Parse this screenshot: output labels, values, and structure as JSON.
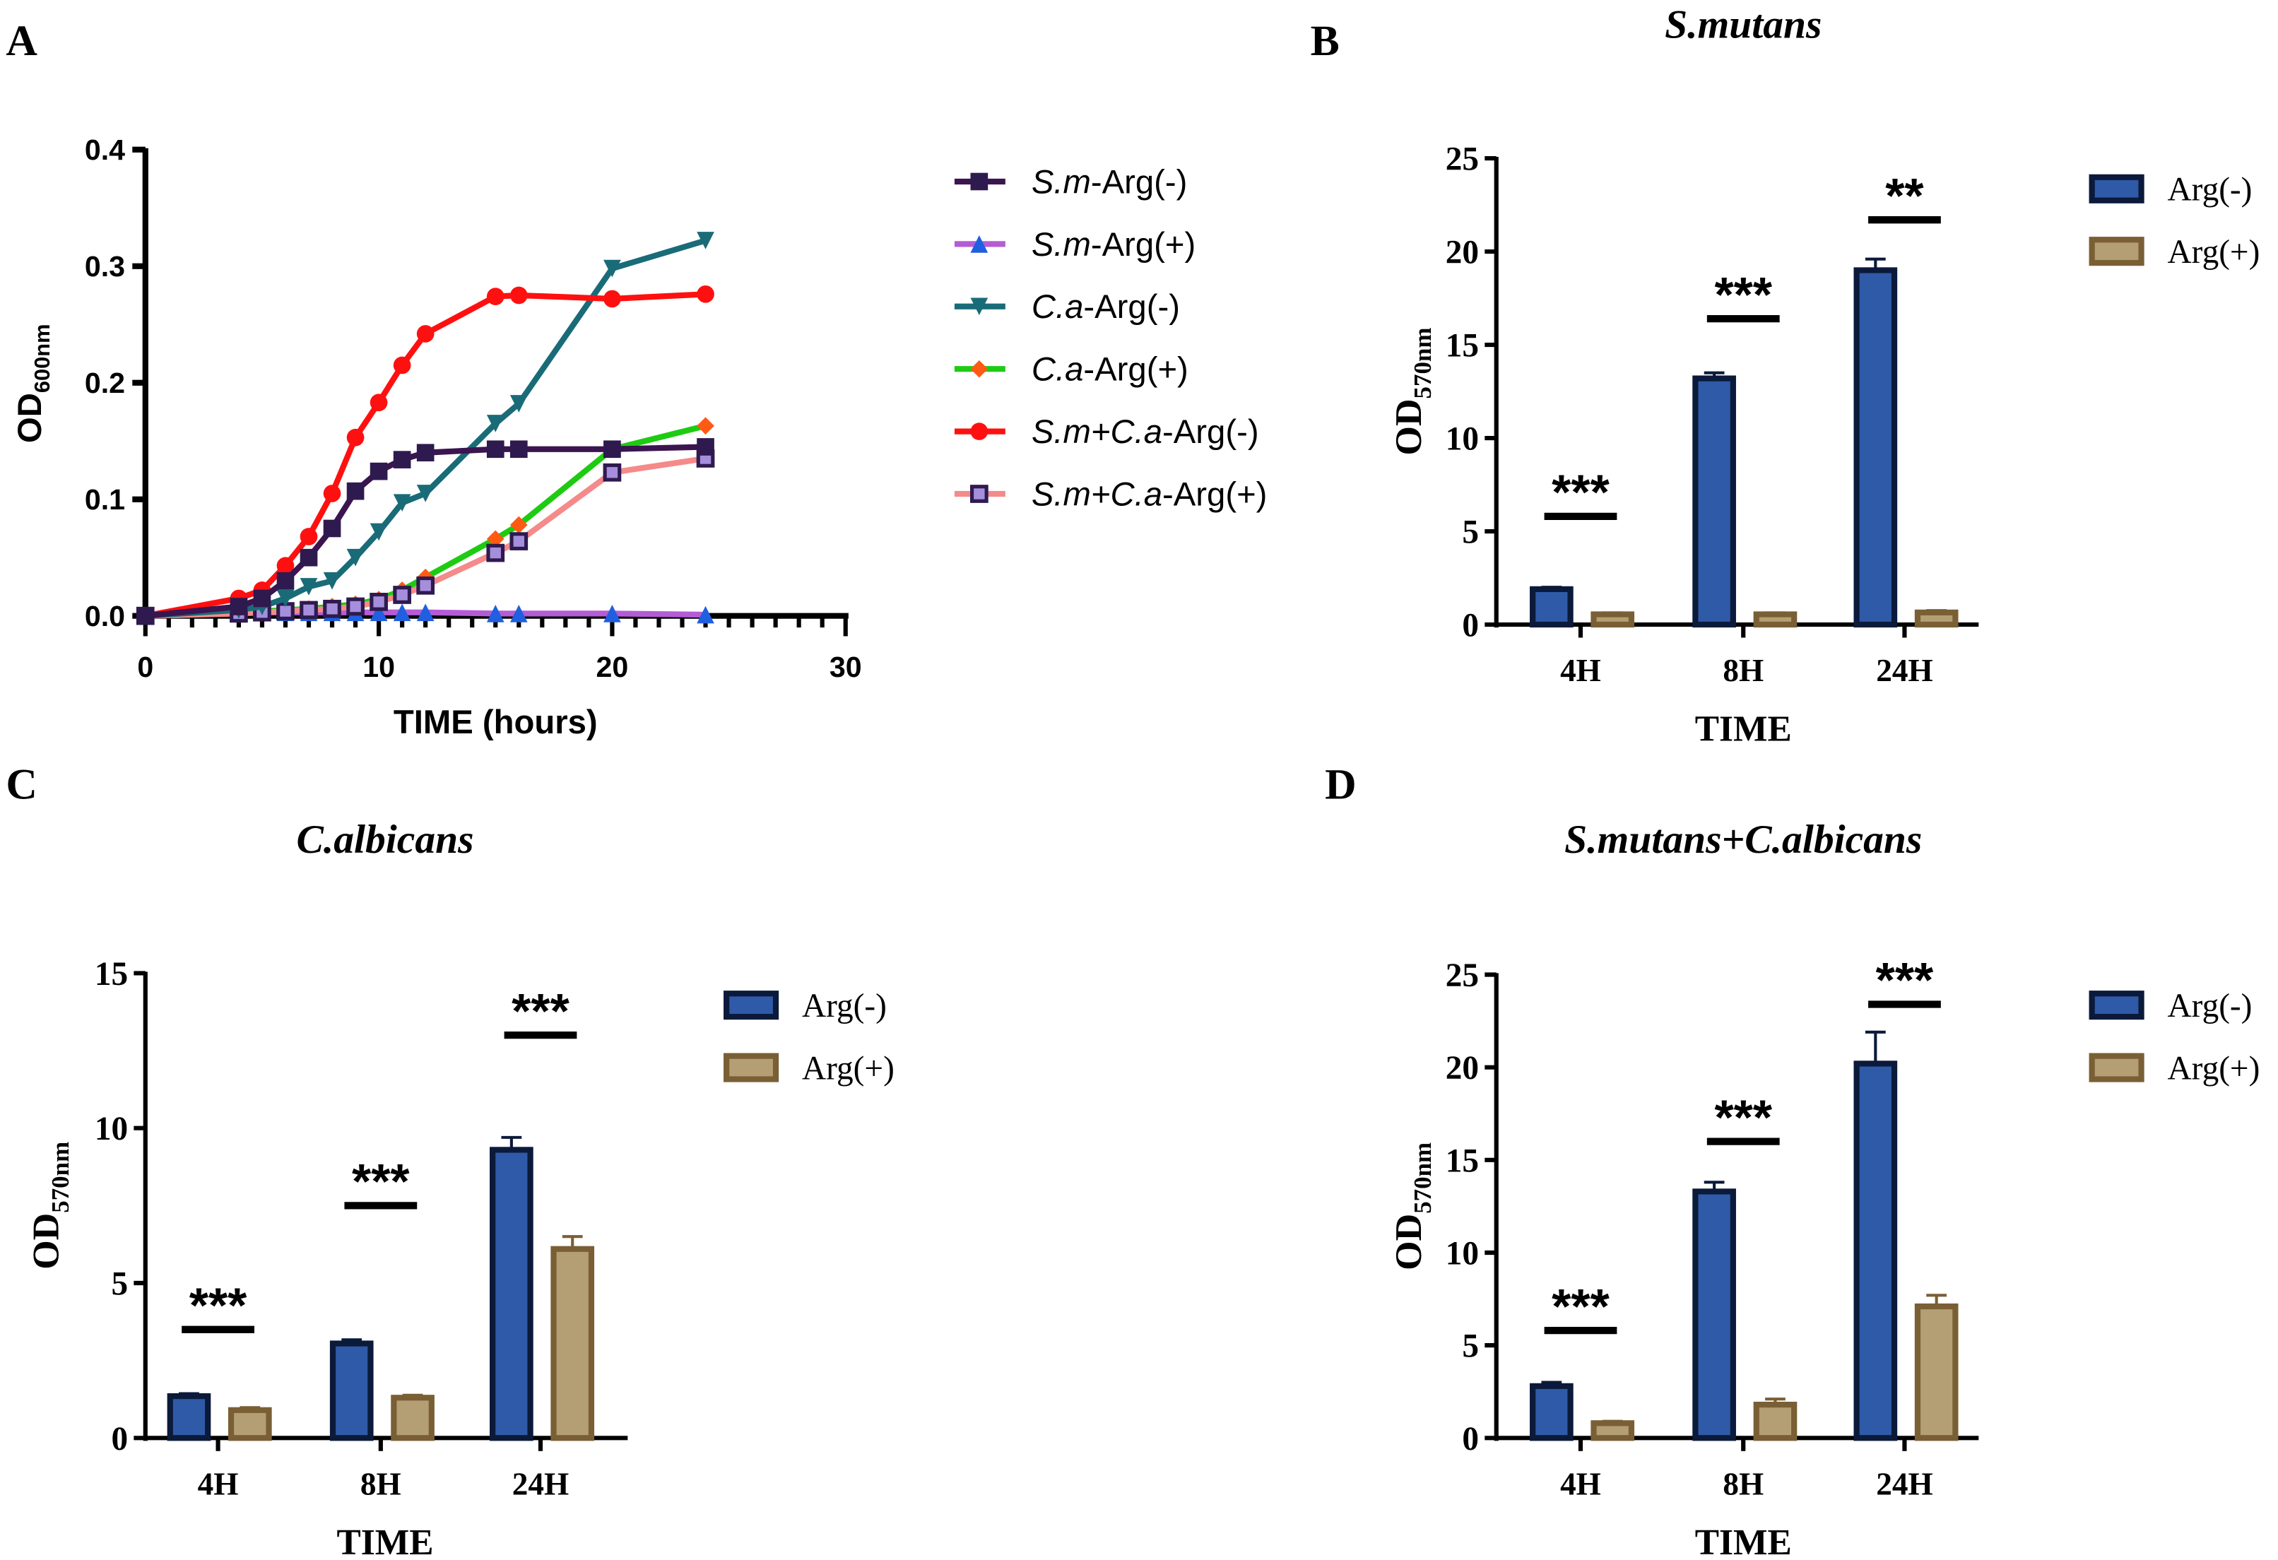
{
  "chart_data": [
    {
      "panel": "A",
      "type": "line",
      "title": "",
      "xlabel": "TIME (hours)",
      "ylabel": "OD",
      "ylabel_sub": "600nm",
      "xlim": [
        0,
        30
      ],
      "ylim": [
        0,
        0.4
      ],
      "xticks": [
        0,
        10,
        20,
        30
      ],
      "yticks": [
        "0.0",
        "0.1",
        "0.2",
        "0.3",
        "0.4"
      ],
      "legend_position": "right",
      "x": [
        0,
        4,
        5,
        6,
        7,
        8,
        9,
        10,
        11,
        12,
        15,
        16,
        20,
        24
      ],
      "series": [
        {
          "name_italic": "S.m",
          "name_rest": "-Arg(-)",
          "color": "#3b1450",
          "marker": "square",
          "markerFill": "#2e1a4f",
          "values": [
            0,
            0.008,
            0.015,
            0.03,
            0.05,
            0.075,
            0.107,
            0.124,
            0.134,
            0.14,
            0.143,
            0.143,
            0.143,
            0.145
          ]
        },
        {
          "name_italic": "S.m",
          "name_rest": "-Arg(+)",
          "color": "#b45cd6",
          "marker": "triangle-up",
          "markerFill": "#1f5fe0",
          "values": [
            0,
            0.003,
            0.003,
            0.003,
            0.003,
            0.003,
            0.003,
            0.003,
            0.003,
            0.003,
            0.002,
            0.002,
            0.002,
            0.001
          ]
        },
        {
          "name_italic": "C.a",
          "name_rest": "-Arg(-)",
          "color": "#1a6b78",
          "marker": "triangle-down",
          "markerFill": "#1a6b78",
          "values": [
            0,
            0.005,
            0.008,
            0.015,
            0.025,
            0.03,
            0.05,
            0.072,
            0.097,
            0.105,
            0.165,
            0.182,
            0.298,
            0.322
          ]
        },
        {
          "name_italic": "C.a",
          "name_rest": "-Arg(+)",
          "color": "#1ecb12",
          "marker": "diamond",
          "markerFill": "#ff5a14",
          "values": [
            0,
            0.003,
            0.004,
            0.005,
            0.006,
            0.008,
            0.01,
            0.014,
            0.022,
            0.033,
            0.066,
            0.078,
            0.143,
            0.163
          ]
        },
        {
          "name_italic": "S.m+C.a",
          "name_rest": "-Arg(-)",
          "color": "#ff1010",
          "marker": "circle",
          "markerFill": "#ff1010",
          "values": [
            0,
            0.015,
            0.022,
            0.043,
            0.068,
            0.105,
            0.153,
            0.183,
            0.215,
            0.242,
            0.274,
            0.275,
            0.272,
            0.276
          ]
        },
        {
          "name_italic": "S.m+C.a",
          "name_rest": "-Arg(+)",
          "color": "#f48a8a",
          "marker": "square-open",
          "markerFill": "#a58fdc",
          "values": [
            0,
            0.002,
            0.003,
            0.004,
            0.005,
            0.006,
            0.008,
            0.012,
            0.018,
            0.026,
            0.054,
            0.064,
            0.123,
            0.135
          ]
        }
      ]
    },
    {
      "panel": "B",
      "type": "bar",
      "title": "S.mutans",
      "xlabel": "TIME",
      "ylabel": "OD",
      "ylabel_sub": "570nm",
      "categories": [
        "4H",
        "8H",
        "24H"
      ],
      "ylim": [
        0,
        25
      ],
      "yticks": [
        "0",
        "5",
        "10",
        "15",
        "20",
        "25"
      ],
      "legend_position": "top-right",
      "series": [
        {
          "name": "Arg(-)",
          "values": [
            1.9,
            13.2,
            19.0
          ],
          "errors": [
            0.1,
            0.3,
            0.6
          ],
          "color": "#2f5aa8",
          "edge": "#0b1a3a"
        },
        {
          "name": "Arg(+)",
          "values": [
            0.55,
            0.55,
            0.65
          ],
          "errors": [
            0.08,
            0.08,
            0.1
          ],
          "color": "#b49e74",
          "edge": "#7a5f35"
        }
      ],
      "significance": [
        {
          "label": "***",
          "level": 5.8
        },
        {
          "label": "***",
          "level": 16.4
        },
        {
          "label": "**",
          "level": 21.7
        }
      ]
    },
    {
      "panel": "C",
      "type": "bar",
      "title": "C.albicans",
      "xlabel": "TIME",
      "ylabel": "OD",
      "ylabel_sub": "570nm",
      "categories": [
        "4H",
        "8H",
        "24H"
      ],
      "ylim": [
        0,
        15
      ],
      "yticks": [
        "0",
        "5",
        "10",
        "15"
      ],
      "legend_position": "top-right",
      "series": [
        {
          "name": "Arg(-)",
          "values": [
            1.35,
            3.05,
            9.3
          ],
          "errors": [
            0.08,
            0.12,
            0.4
          ],
          "color": "#2f5aa8",
          "edge": "#0b1a3a"
        },
        {
          "name": "Arg(+)",
          "values": [
            0.9,
            1.3,
            6.1
          ],
          "errors": [
            0.08,
            0.08,
            0.4
          ],
          "color": "#b49e74",
          "edge": "#7a5f35"
        }
      ],
      "significance": [
        {
          "label": "***",
          "level": 3.5
        },
        {
          "label": "***",
          "level": 7.5
        },
        {
          "label": "***",
          "level": 13.0
        }
      ]
    },
    {
      "panel": "D",
      "type": "bar",
      "title": "S.mutans+C.albicans",
      "xlabel": "TIME",
      "ylabel": "OD",
      "ylabel_sub": "570nm",
      "categories": [
        "4H",
        "8H",
        "24H"
      ],
      "ylim": [
        0,
        25
      ],
      "yticks": [
        "0",
        "5",
        "10",
        "15",
        "20",
        "25"
      ],
      "legend_position": "top-right",
      "series": [
        {
          "name": "Arg(-)",
          "values": [
            2.8,
            13.3,
            20.2
          ],
          "errors": [
            0.2,
            0.5,
            1.7
          ],
          "color": "#2f5aa8",
          "edge": "#0b1a3a"
        },
        {
          "name": "Arg(+)",
          "values": [
            0.8,
            1.8,
            7.1
          ],
          "errors": [
            0.1,
            0.3,
            0.6
          ],
          "color": "#b49e74",
          "edge": "#7a5f35"
        }
      ],
      "significance": [
        {
          "label": "***",
          "level": 5.8
        },
        {
          "label": "***",
          "level": 16.0
        },
        {
          "label": "***",
          "level": 23.4
        }
      ]
    }
  ]
}
